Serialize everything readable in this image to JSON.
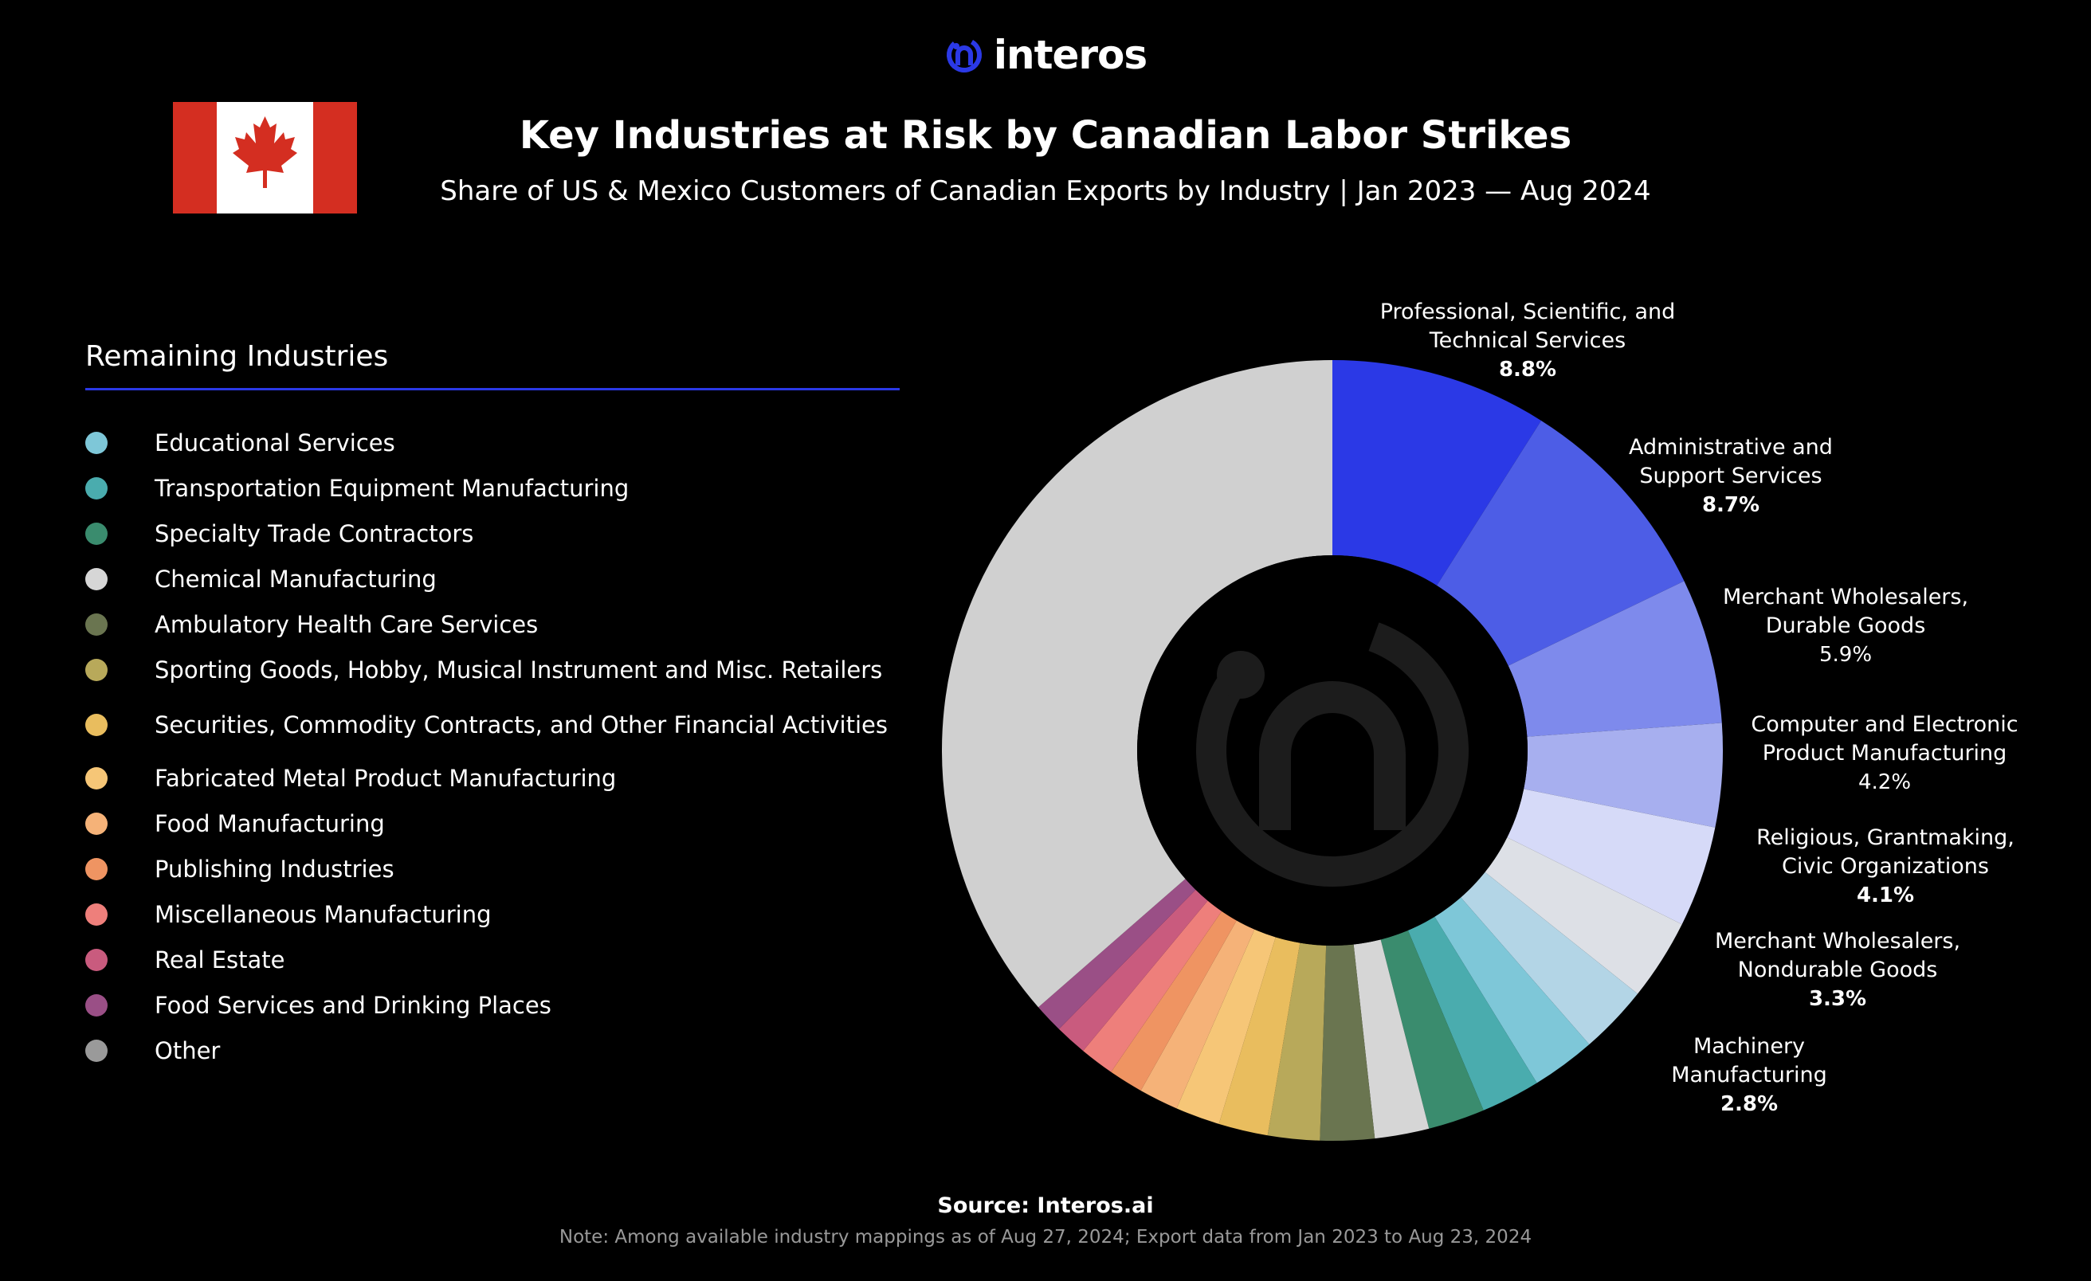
{
  "brand": {
    "name": "interos",
    "accent": "#2b39e6"
  },
  "header": {
    "title": "Key Industries at Risk by Canadian Labor Strikes",
    "subtitle": "Share of US & Mexico Customers of Canadian Exports by Industry  |  Jan 2023 — Aug 2024"
  },
  "legend": {
    "title": "Remaining Industries",
    "items": [
      {
        "label": "Educational Services",
        "color": "#7ec7d8"
      },
      {
        "label": "Transportation Equipment Manufacturing",
        "color": "#4aacae"
      },
      {
        "label": "Specialty Trade Contractors",
        "color": "#3a8c6e"
      },
      {
        "label": "Chemical Manufacturing",
        "color": "#d6d6d6"
      },
      {
        "label": "Ambulatory Health Care Services",
        "color": "#6a7550"
      },
      {
        "label": "Sporting Goods, Hobby, Musical Instrument and Misc. Retailers",
        "color": "#b8a95a"
      },
      {
        "label": "Securities, Commodity Contracts, and Other Financial Activities",
        "color": "#e9bd5e"
      },
      {
        "label": "Fabricated Metal Product Manufacturing",
        "color": "#f6c677"
      },
      {
        "label": "Food Manufacturing",
        "color": "#f5b278"
      },
      {
        "label": "Publishing Industries",
        "color": "#ef9462"
      },
      {
        "label": "Miscellaneous Manufacturing",
        "color": "#ee7f7b"
      },
      {
        "label": "Real Estate",
        "color": "#c95b7e"
      },
      {
        "label": "Food Services and Drinking Places",
        "color": "#9a4f86"
      },
      {
        "label": "Other",
        "color": "#9a9a9a"
      }
    ]
  },
  "chart_data": {
    "type": "pie",
    "style": "donut",
    "unit": "%",
    "slices": [
      {
        "name": "Professional, Scientific, and Technical Services",
        "value": 8.8,
        "display": "8.8%",
        "color": "#2b39e6",
        "label_lines": [
          "Professional, Scientific, and",
          "Technical Services"
        ],
        "bold_pct": true
      },
      {
        "name": "Administrative and Support Services",
        "value": 8.7,
        "display": "8.7%",
        "color": "#4d5de6",
        "label_lines": [
          "Administrative and",
          "Support Services"
        ],
        "bold_pct": true
      },
      {
        "name": "Merchant Wholesalers, Durable Goods",
        "value": 5.9,
        "display": "5.9%",
        "color": "#7e8aec",
        "label_lines": [
          "Merchant Wholesalers,",
          "Durable Goods"
        ],
        "bold_pct": false
      },
      {
        "name": "Computer and Electronic Product Manufacturing",
        "value": 4.2,
        "display": "4.2%",
        "color": "#a7afef",
        "label_lines": [
          "Computer and Electronic",
          "Product Manufacturing"
        ],
        "bold_pct": false
      },
      {
        "name": "Religious, Grantmaking, Civic Organizations",
        "value": 4.1,
        "display": "4.1%",
        "color": "#d6daf8",
        "label_lines": [
          "Religious, Grantmaking,",
          "Civic Organizations"
        ],
        "bold_pct": true
      },
      {
        "name": "Merchant Wholesalers, Nondurable Goods",
        "value": 3.3,
        "display": "3.3%",
        "color": "#dde0e6",
        "label_lines": [
          "Merchant Wholesalers,",
          "Nondurable Goods"
        ],
        "bold_pct": true
      },
      {
        "name": "Machinery Manufacturing",
        "value": 2.8,
        "display": "2.8%",
        "color": "#b3d5e6",
        "label_lines": [
          "Machinery",
          "Manufacturing"
        ],
        "bold_pct": true
      },
      {
        "name": "Educational Services",
        "value": 2.6,
        "color": "#7ec7d8"
      },
      {
        "name": "Transportation Equipment Manufacturing",
        "value": 2.4,
        "color": "#4aacae"
      },
      {
        "name": "Specialty Trade Contractors",
        "value": 2.3,
        "color": "#3a8c6e"
      },
      {
        "name": "Chemical Manufacturing",
        "value": 2.2,
        "color": "#d6d6d6"
      },
      {
        "name": "Ambulatory Health Care Services",
        "value": 2.2,
        "color": "#6a7550"
      },
      {
        "name": "Sporting Goods, Hobby, Musical Instrument and Misc. Retailers",
        "value": 2.1,
        "color": "#b8a95a"
      },
      {
        "name": "Securities, Commodity Contracts, and Other Financial Activities",
        "value": 2.0,
        "color": "#e9bd5e"
      },
      {
        "name": "Fabricated Metal Product Manufacturing",
        "value": 1.8,
        "color": "#f6c677"
      },
      {
        "name": "Food Manufacturing",
        "value": 1.6,
        "color": "#f5b278"
      },
      {
        "name": "Publishing Industries",
        "value": 1.4,
        "color": "#ef9462"
      },
      {
        "name": "Miscellaneous Manufacturing",
        "value": 1.4,
        "color": "#ee7f7b"
      },
      {
        "name": "Real Estate",
        "value": 1.3,
        "color": "#c95b7e"
      },
      {
        "name": "Food Services and Drinking Places",
        "value": 1.2,
        "color": "#9a4f86"
      },
      {
        "name": "Other",
        "value": 35.7,
        "color": "#d0d0d0"
      }
    ]
  },
  "footer": {
    "source": "Source: Interos.ai",
    "note": "Note: Among available industry mappings as of Aug 27, 2024; Export data from Jan 2023 to Aug 23, 2024"
  }
}
